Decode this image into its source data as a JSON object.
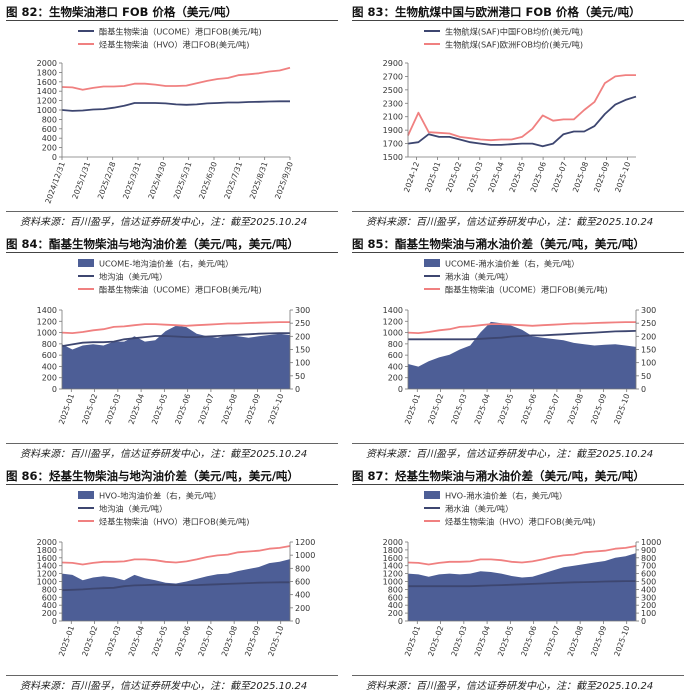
{
  "source_text": "资料来源：百川盈孚，信达证券研发中心，注：截至2025.10.24",
  "charts": [
    {
      "title": "图 82：生物柴油港口 FOB 价格（美元/吨）",
      "type": "line",
      "categories": [
        "2024/12/31",
        "2025/1/31",
        "2025/2/28",
        "2025/3/31",
        "2025/4/30",
        "2025/5/31",
        "2025/6/30",
        "2025/7/31",
        "2025/8/31",
        "2025/9/30"
      ],
      "left_axis": {
        "min": 0,
        "max": 2000,
        "ticks": [
          0,
          200,
          400,
          600,
          800,
          1000,
          1200,
          1400,
          1600,
          1800,
          2000
        ]
      },
      "series": [
        {
          "name": "酯基生物柴油（UCOME）港口FOB(美元/吨)",
          "kind": "line",
          "axis": "left",
          "color": "#3d4670",
          "values": [
            1000,
            980,
            990,
            1010,
            1020,
            1050,
            1090,
            1150,
            1150,
            1150,
            1140,
            1120,
            1110,
            1120,
            1140,
            1150,
            1160,
            1160,
            1170,
            1175,
            1180,
            1185,
            1185
          ]
        },
        {
          "name": "烃基生物柴油（HVO）港口FOB(美元/吨)",
          "kind": "line",
          "axis": "left",
          "color": "#f08080",
          "values": [
            1490,
            1480,
            1430,
            1470,
            1500,
            1500,
            1510,
            1560,
            1560,
            1540,
            1510,
            1510,
            1520,
            1570,
            1620,
            1660,
            1680,
            1740,
            1760,
            1780,
            1820,
            1840,
            1900
          ]
        }
      ]
    },
    {
      "title": "图 83：生物航煤中国与欧洲港口 FOB 价格（美元/吨）",
      "type": "line",
      "categories": [
        "2024-12",
        "2025-01",
        "2025-02",
        "2025-03",
        "2025-04",
        "2025-05",
        "2025-06",
        "2025-07",
        "2025-08",
        "2025-09",
        "2025-10"
      ],
      "left_axis": {
        "min": 1500,
        "max": 2900,
        "ticks": [
          1500,
          1700,
          1900,
          2100,
          2300,
          2500,
          2700,
          2900
        ]
      },
      "series": [
        {
          "name": "生物航煤(SAF)中国FOB均价(美元/吨)",
          "kind": "line",
          "axis": "left",
          "color": "#3d4670",
          "values": [
            1700,
            1720,
            1840,
            1800,
            1800,
            1760,
            1720,
            1700,
            1680,
            1680,
            1690,
            1700,
            1700,
            1660,
            1700,
            1840,
            1880,
            1880,
            1960,
            2140,
            2280,
            2350,
            2400
          ]
        },
        {
          "name": "生物航煤(SAF)欧洲FOB均价(美元/吨)",
          "kind": "line",
          "axis": "left",
          "color": "#f08080",
          "values": [
            1820,
            2160,
            1870,
            1860,
            1850,
            1800,
            1780,
            1760,
            1750,
            1760,
            1760,
            1800,
            1920,
            2120,
            2040,
            2060,
            2060,
            2200,
            2320,
            2600,
            2700,
            2720,
            2720
          ]
        }
      ]
    },
    {
      "title": "图 84：酯基生物柴油与地沟油价差（美元/吨，美元/吨）",
      "type": "area+line",
      "categories": [
        "2025-01",
        "2025-02",
        "2025-03",
        "2025-04",
        "2025-05",
        "2025-06",
        "2025-07",
        "2025-08",
        "2025-09",
        "2025-10"
      ],
      "left_axis": {
        "min": 0,
        "max": 1400,
        "ticks": [
          0,
          200,
          400,
          600,
          800,
          1000,
          1200,
          1400
        ]
      },
      "right_axis": {
        "min": 0,
        "max": 300,
        "ticks": [
          0,
          50,
          100,
          150,
          200,
          250,
          300
        ]
      },
      "series": [
        {
          "name": "UCOME-地沟油价差（右，美元/吨）",
          "kind": "area",
          "axis": "right",
          "color": "#4d5e96",
          "values": [
            170,
            150,
            165,
            170,
            165,
            180,
            180,
            200,
            180,
            185,
            220,
            240,
            235,
            210,
            200,
            195,
            205,
            200,
            195,
            200,
            205,
            210,
            205
          ]
        },
        {
          "name": "地沟油（美元/吨）",
          "kind": "line",
          "axis": "left",
          "color": "#3d4670",
          "values": [
            760,
            790,
            820,
            830,
            830,
            840,
            880,
            900,
            920,
            940,
            940,
            930,
            920,
            920,
            930,
            940,
            950,
            960,
            970,
            980,
            985,
            990,
            990
          ]
        },
        {
          "name": "酯基生物柴油（UCOME）港口FOB(美元/吨)",
          "kind": "line",
          "axis": "left",
          "color": "#f08080",
          "values": [
            1000,
            990,
            1010,
            1040,
            1060,
            1100,
            1110,
            1130,
            1150,
            1150,
            1140,
            1130,
            1120,
            1130,
            1140,
            1150,
            1160,
            1160,
            1170,
            1175,
            1180,
            1185,
            1185
          ]
        }
      ]
    },
    {
      "title": "图 85：酯基生物柴油与潲水油价差（美元/吨，美元/吨）",
      "type": "area+line",
      "categories": [
        "2025-01",
        "2025-02",
        "2025-03",
        "2025-04",
        "2025-05",
        "2025-06",
        "2025-07",
        "2025-08",
        "2025-09",
        "2025-10"
      ],
      "left_axis": {
        "min": 0,
        "max": 1400,
        "ticks": [
          0,
          200,
          400,
          600,
          800,
          1000,
          1200,
          1400
        ]
      },
      "right_axis": {
        "min": 0,
        "max": 300,
        "ticks": [
          0,
          50,
          100,
          150,
          200,
          250,
          300
        ]
      },
      "series": [
        {
          "name": "UCOME-潲水油价差（右，美元/吨）",
          "kind": "area",
          "axis": "right",
          "color": "#4d5e96",
          "values": [
            95,
            85,
            105,
            120,
            130,
            150,
            165,
            215,
            255,
            250,
            240,
            225,
            200,
            195,
            190,
            185,
            175,
            170,
            165,
            168,
            170,
            165,
            160
          ]
        },
        {
          "name": "潲水油（美元/吨）",
          "kind": "line",
          "axis": "left",
          "color": "#3d4670",
          "values": [
            880,
            880,
            880,
            880,
            880,
            880,
            880,
            890,
            900,
            910,
            930,
            940,
            950,
            950,
            960,
            970,
            980,
            990,
            1000,
            1010,
            1020,
            1025,
            1030
          ]
        },
        {
          "name": "酯基生物柴油（UCOME）港口FOB(美元/吨)",
          "kind": "line",
          "axis": "left",
          "color": "#f08080",
          "values": [
            1000,
            990,
            1010,
            1040,
            1060,
            1100,
            1110,
            1130,
            1150,
            1150,
            1140,
            1130,
            1120,
            1130,
            1140,
            1150,
            1160,
            1160,
            1170,
            1175,
            1180,
            1185,
            1185
          ]
        }
      ]
    },
    {
      "title": "图 86：烃基生物柴油与地沟油价差（美元/吨，美元/吨）",
      "type": "area+line",
      "categories": [
        "2025-01",
        "2025-02",
        "2025-03",
        "2025-04",
        "2025-05",
        "2025-06",
        "2025-07",
        "2025-08",
        "2025-09",
        "2025-10"
      ],
      "left_axis": {
        "min": 0,
        "max": 2000,
        "ticks": [
          0,
          200,
          400,
          600,
          800,
          1000,
          1200,
          1400,
          1600,
          1800,
          2000
        ]
      },
      "right_axis": {
        "min": 0,
        "max": 1200,
        "ticks": [
          0,
          200,
          400,
          600,
          800,
          1000,
          1200
        ]
      },
      "series": [
        {
          "name": "HVO-地沟油价差（右，美元/吨）",
          "kind": "area",
          "axis": "right",
          "color": "#4d5e96",
          "values": [
            720,
            700,
            620,
            660,
            680,
            660,
            620,
            700,
            650,
            620,
            580,
            570,
            600,
            640,
            680,
            710,
            720,
            760,
            790,
            820,
            880,
            900,
            940
          ]
        },
        {
          "name": "地沟油（美元/吨）",
          "kind": "line",
          "axis": "left",
          "color": "#3d4670",
          "values": [
            780,
            790,
            800,
            820,
            830,
            840,
            880,
            900,
            910,
            920,
            920,
            910,
            910,
            910,
            920,
            930,
            940,
            950,
            960,
            970,
            975,
            980,
            980
          ]
        },
        {
          "name": "烃基生物柴油（HVO）港口FOB(美元/吨)",
          "kind": "line",
          "axis": "left",
          "color": "#f08080",
          "values": [
            1480,
            1470,
            1430,
            1470,
            1500,
            1500,
            1510,
            1560,
            1560,
            1540,
            1500,
            1480,
            1510,
            1560,
            1620,
            1660,
            1680,
            1740,
            1760,
            1780,
            1830,
            1850,
            1900
          ]
        }
      ]
    },
    {
      "title": "图 87：烃基生物柴油与潲水油价差（美元/吨，美元/吨）",
      "type": "area+line",
      "categories": [
        "2025-01",
        "2025-02",
        "2025-03",
        "2025-04",
        "2025-05",
        "2025-06",
        "2025-07",
        "2025-08",
        "2025-09",
        "2025-10"
      ],
      "left_axis": {
        "min": 0,
        "max": 2000,
        "ticks": [
          0,
          200,
          400,
          600,
          800,
          1000,
          1200,
          1400,
          1600,
          1800,
          2000
        ]
      },
      "right_axis": {
        "min": 0,
        "max": 1000,
        "ticks": [
          0,
          100,
          200,
          300,
          400,
          500,
          600,
          700,
          800,
          900,
          1000
        ]
      },
      "series": [
        {
          "name": "HVO-潲水油价差（右，美元/吨）",
          "kind": "area",
          "axis": "right",
          "color": "#4d5e96",
          "values": [
            600,
            590,
            560,
            590,
            600,
            590,
            600,
            630,
            620,
            600,
            570,
            550,
            560,
            600,
            640,
            680,
            700,
            720,
            740,
            760,
            800,
            820,
            860
          ]
        },
        {
          "name": "潲水油（美元/吨）",
          "kind": "line",
          "axis": "left",
          "color": "#3d4670",
          "values": [
            880,
            880,
            880,
            880,
            880,
            880,
            880,
            890,
            900,
            910,
            920,
            930,
            940,
            950,
            960,
            970,
            980,
            985,
            990,
            1000,
            1005,
            1010,
            1010
          ]
        },
        {
          "name": "烃基生物柴油（HVO）港口FOB(美元/吨)",
          "kind": "line",
          "axis": "left",
          "color": "#f08080",
          "values": [
            1480,
            1470,
            1430,
            1470,
            1500,
            1500,
            1510,
            1560,
            1560,
            1540,
            1500,
            1480,
            1510,
            1560,
            1620,
            1660,
            1680,
            1740,
            1760,
            1780,
            1830,
            1850,
            1900
          ]
        }
      ]
    }
  ]
}
